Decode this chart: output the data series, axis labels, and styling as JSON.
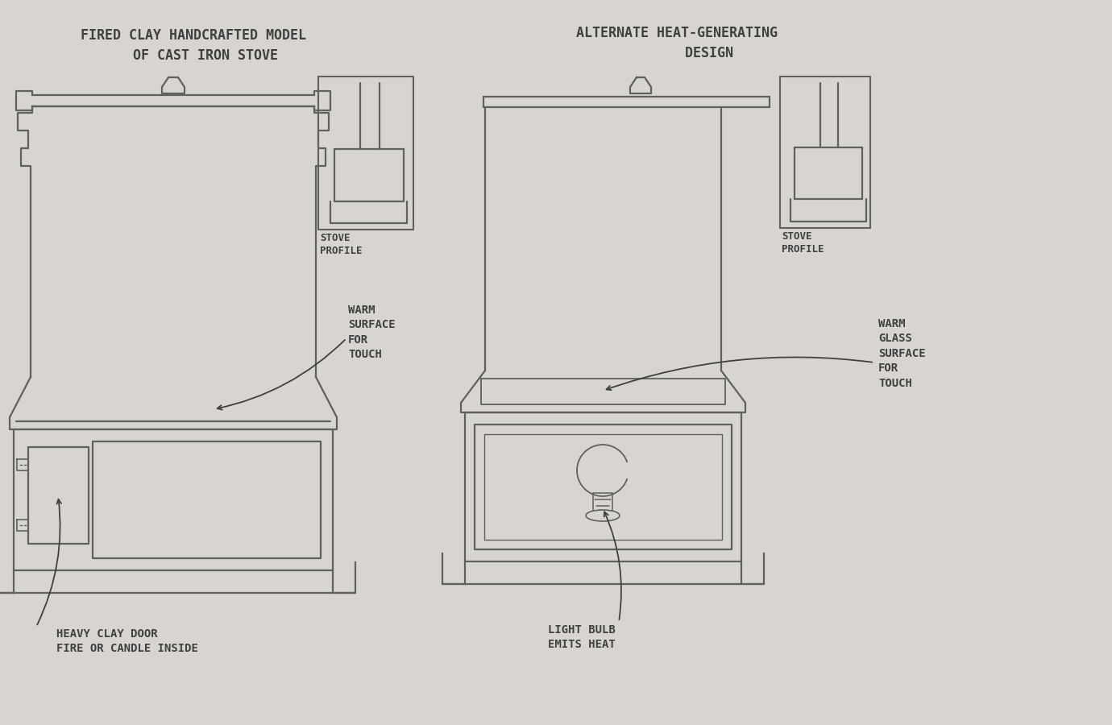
{
  "bg_color": "#d8d5d0",
  "paper_color": "#e8e6e2",
  "line_color": "#606060",
  "text_color": "#404040",
  "title_left": "FIRED CLAY HANDCRAFTED MODEL\n   OF CAST IRON STOVE",
  "title_right": "ALTERNATE HEAT-GENERATING\n        DESIGN",
  "label_left_top": "WARM\nSURFACE\nFOR\nTOUCH",
  "label_left_bottom": "HEAVY CLAY DOOR\nFIRE OR CANDLE INSIDE",
  "label_right_top": "WARM\nGLASS\nSURFACE\nFOR\nTOUCH",
  "label_right_bottom": "LIGHT BULB\nEMITS HEAT",
  "profile_label_left": "STOVE\nPROFILE",
  "profile_label_right": "STOVE\nPROFILE"
}
